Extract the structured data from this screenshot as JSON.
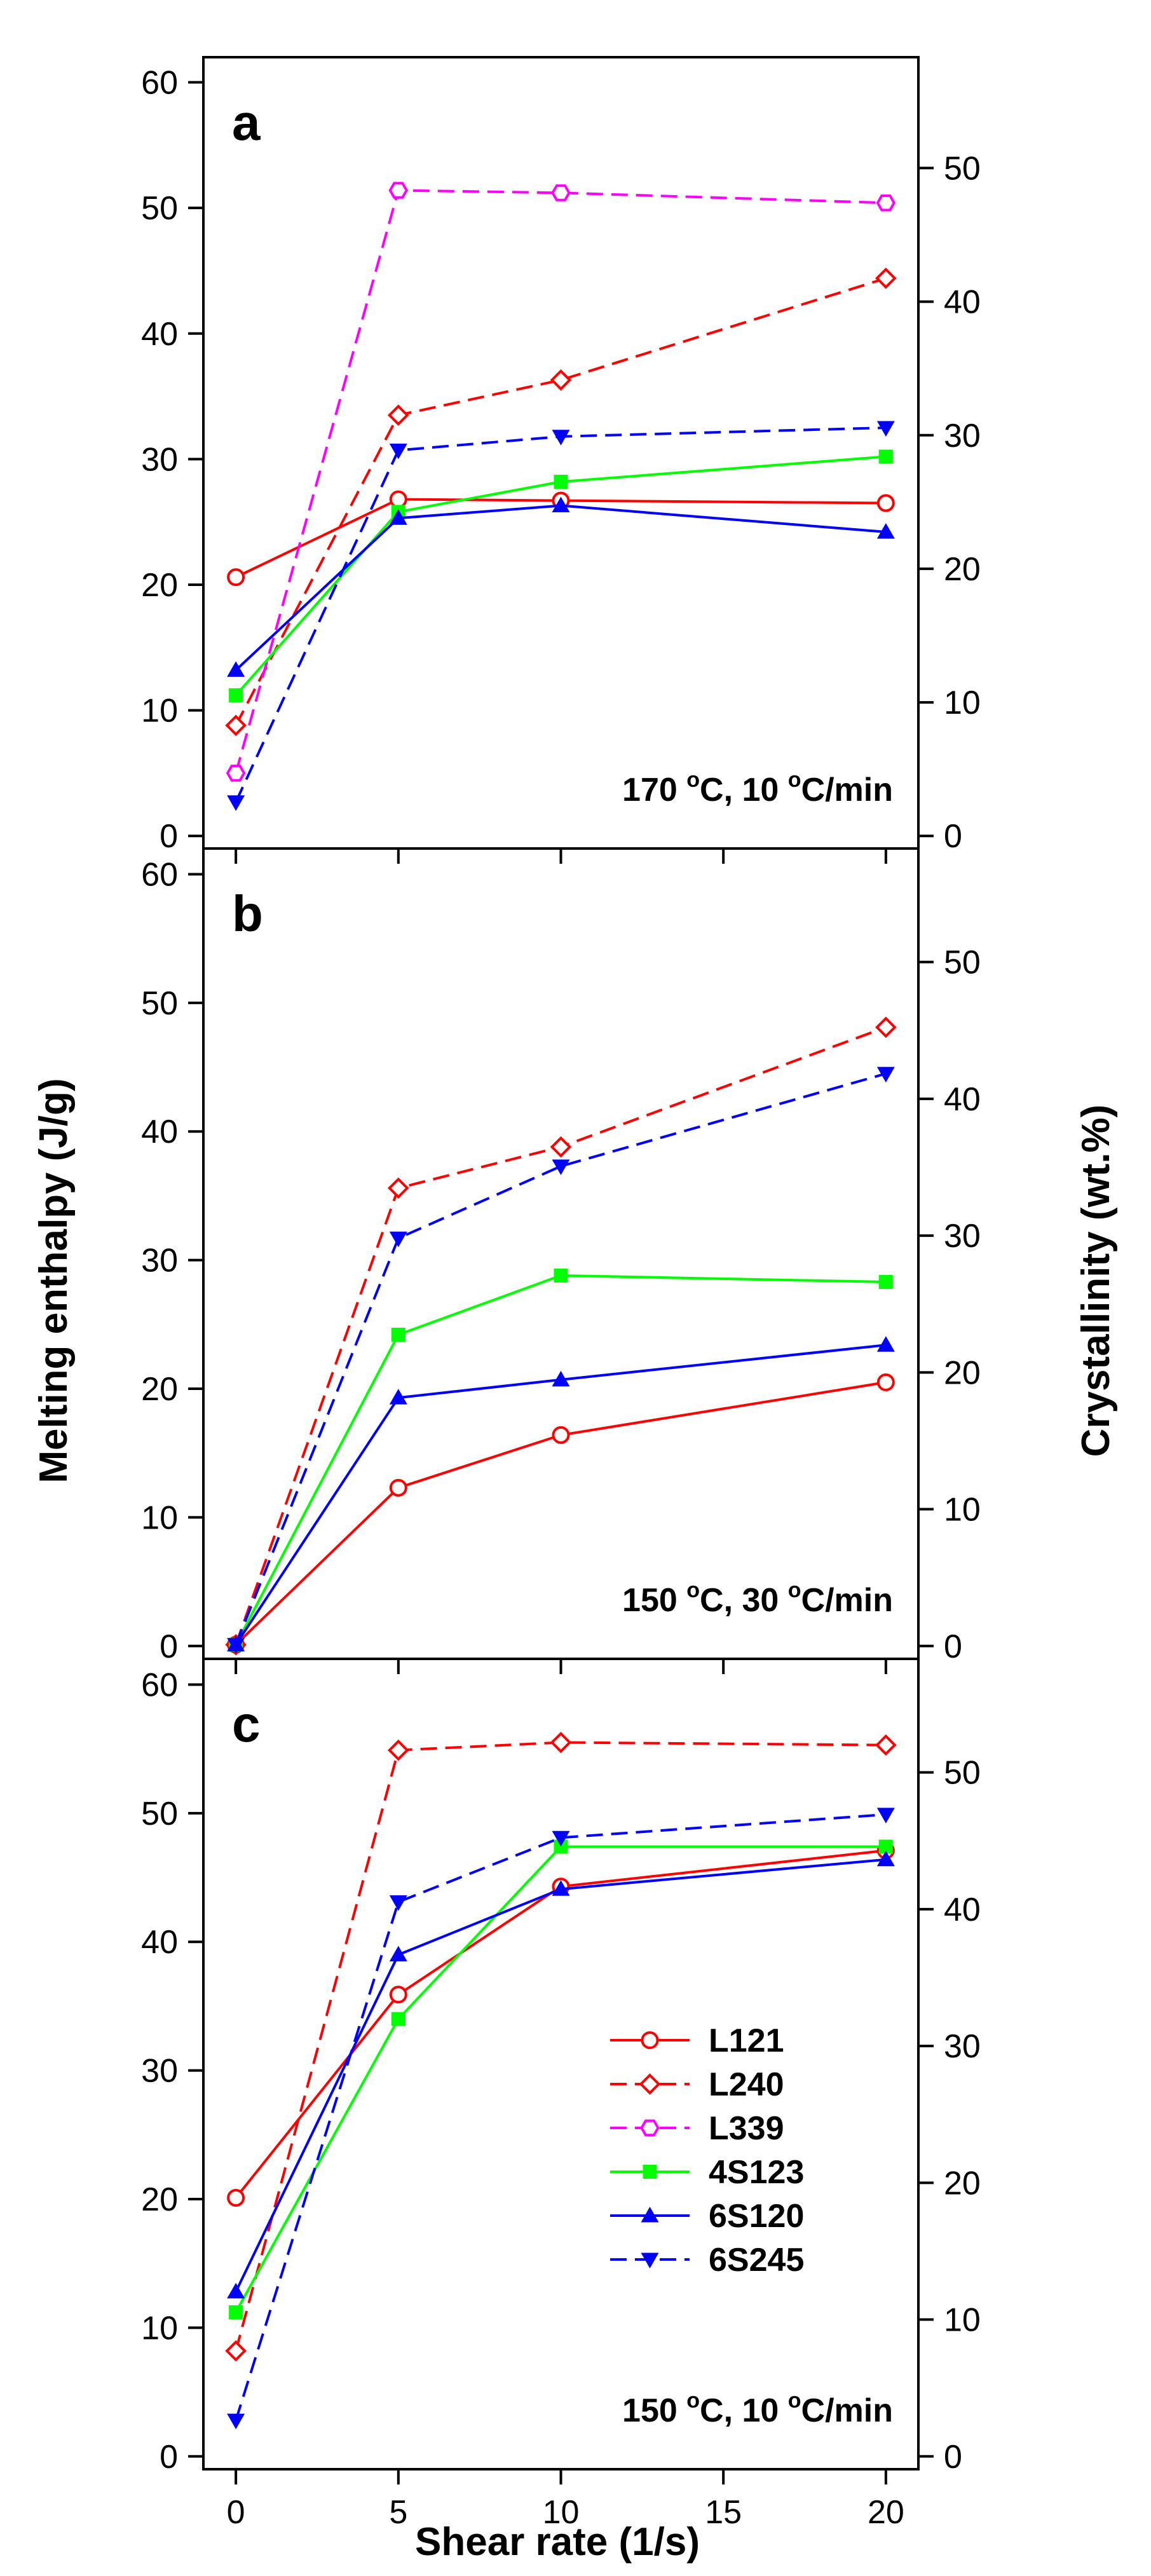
{
  "chart_data": {
    "type": "line",
    "xlabel": "Shear rate (1/s)",
    "ylabel_left": "Melting enthalpy (J/g)",
    "ylabel_right": "Crystallinity (wt.%)",
    "xlim": [
      -1,
      21
    ],
    "xticks": [
      "0",
      "5",
      "10",
      "15",
      "20"
    ],
    "xtick_values": [
      0,
      5,
      10,
      15,
      20
    ],
    "ylim_left": [
      -1,
      62
    ],
    "yticks_left": [
      "0",
      "10",
      "20",
      "30",
      "40",
      "50",
      "60"
    ],
    "yticks_left_values": [
      0,
      10,
      20,
      30,
      40,
      50,
      60
    ],
    "ylim_right": [
      -0.94,
      58.3
    ],
    "yticks_right": [
      "0",
      "10",
      "20",
      "30",
      "40",
      "50"
    ],
    "yticks_right_values": [
      0,
      10,
      20,
      30,
      40,
      50
    ],
    "legend": {
      "placement": "inside panel c, center-right",
      "entries": [
        "L121",
        "L240",
        "L339",
        "4S123",
        "6S120",
        "6S245"
      ]
    },
    "series_styles": [
      {
        "name": "L121",
        "color": "#ff0000",
        "dash": "solid",
        "marker": "circle-open"
      },
      {
        "name": "L240",
        "color": "#ff0000",
        "dash": "dashed",
        "marker": "diamond-open"
      },
      {
        "name": "L339",
        "color": "#ff00ff",
        "dash": "dashed",
        "marker": "hexagon-open"
      },
      {
        "name": "4S123",
        "color": "#00ff00",
        "dash": "solid",
        "marker": "square-filled"
      },
      {
        "name": "6S120",
        "color": "#0000ff",
        "dash": "solid",
        "marker": "triangle-up-filled"
      },
      {
        "name": "6S245",
        "color": "#0000ff",
        "dash": "dashed",
        "marker": "triangle-down-filled"
      }
    ],
    "panels": [
      {
        "label": "a",
        "condition": {
          "temp": "170",
          "deg1": "o",
          "mid": "C, 10",
          "deg2": "o",
          "rate": "C/min"
        },
        "x": [
          0,
          5,
          10,
          20
        ],
        "series": [
          {
            "name": "L121",
            "values": [
              20.6,
              26.8,
              26.7,
              26.5
            ]
          },
          {
            "name": "L240",
            "values": [
              8.8,
              33.5,
              36.3,
              44.4
            ]
          },
          {
            "name": "L339",
            "values": [
              5.0,
              51.4,
              51.2,
              50.4
            ]
          },
          {
            "name": "4S123",
            "values": [
              11.2,
              25.8,
              28.2,
              30.2
            ]
          },
          {
            "name": "6S120",
            "values": [
              13.2,
              25.3,
              26.3,
              24.2
            ]
          },
          {
            "name": "6S245",
            "values": [
              2.7,
              30.7,
              31.8,
              32.5
            ]
          }
        ]
      },
      {
        "label": "b",
        "condition": {
          "temp": "150",
          "deg1": "o",
          "mid": "C, 30",
          "deg2": "o",
          "rate": "C/min"
        },
        "x": [
          0,
          5,
          10,
          20
        ],
        "series": [
          {
            "name": "L121",
            "values": [
              0.1,
              12.3,
              16.4,
              20.5
            ]
          },
          {
            "name": "L240",
            "values": [
              0.1,
              35.6,
              38.8,
              48.1
            ]
          },
          {
            "name": "4S123",
            "values": [
              0.1,
              24.2,
              28.8,
              28.3
            ]
          },
          {
            "name": "6S120",
            "values": [
              0.1,
              19.3,
              20.7,
              23.4
            ]
          },
          {
            "name": "6S245",
            "values": [
              0.1,
              31.7,
              37.3,
              44.5
            ]
          }
        ]
      },
      {
        "label": "c",
        "condition": {
          "temp": "150",
          "deg1": "o",
          "mid": "C, 10",
          "deg2": "o",
          "rate": "C/min"
        },
        "x": [
          0,
          5,
          10,
          20
        ],
        "series": [
          {
            "name": "L121",
            "values": [
              20.1,
              35.9,
              44.3,
              47.1
            ]
          },
          {
            "name": "L240",
            "values": [
              8.2,
              54.9,
              55.5,
              55.3
            ]
          },
          {
            "name": "4S123",
            "values": [
              11.2,
              34.0,
              47.4,
              47.4
            ]
          },
          {
            "name": "6S120",
            "values": [
              12.8,
              39.0,
              44.1,
              46.4
            ]
          },
          {
            "name": "6S245",
            "values": [
              2.8,
              43.1,
              48.1,
              49.9
            ]
          }
        ]
      }
    ]
  }
}
